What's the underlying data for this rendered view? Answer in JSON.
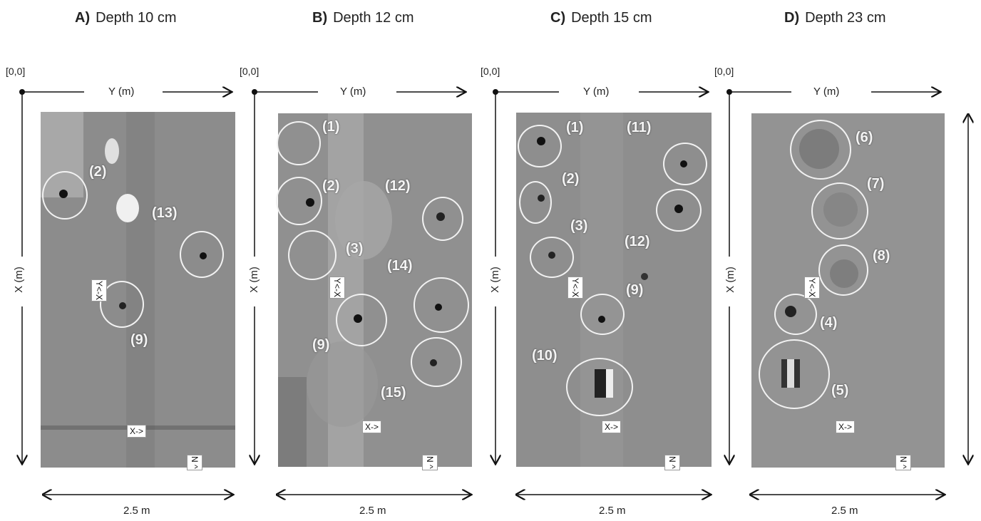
{
  "panels": [
    {
      "letter": "A)",
      "title": "Depth 10 cm",
      "origin": "[0,0]",
      "yaxis": "Y (m)",
      "xaxis": "X (m)",
      "scale": "2.5 m",
      "anomalies": [
        "(2)",
        "(13)",
        "(9)"
      ],
      "tag1": "Y<-X",
      "tag2": "X->",
      "tag3": "N ^"
    },
    {
      "letter": "B)",
      "title": "Depth 12 cm",
      "origin": "[0,0]",
      "yaxis": "Y (m)",
      "xaxis": "X (m)",
      "scale": "2.5 m",
      "anomalies": [
        "(1)",
        "(2)",
        "(12)",
        "(3)",
        "(14)",
        "(9)",
        "(15)"
      ],
      "tag1": "Y<-X",
      "tag2": "X->",
      "tag3": "N ^"
    },
    {
      "letter": "C)",
      "title": "Depth 15 cm",
      "origin": "[0,0]",
      "yaxis": "Y (m)",
      "xaxis": "X (m)",
      "scale": "2.5 m",
      "anomalies": [
        "(1)",
        "(11)",
        "(2)",
        "(3)",
        "(12)",
        "(9)",
        "(10)"
      ],
      "tag1": "Y<-X",
      "tag2": "X->",
      "tag3": "N ^"
    },
    {
      "letter": "D)",
      "title": "Depth 23 cm",
      "origin": "[0,0]",
      "yaxis": "Y (m)",
      "xaxis": "X (m)",
      "scale": "2.5 m",
      "anomalies": [
        "(6)",
        "(7)",
        "(8)",
        "(4)",
        "(5)"
      ],
      "tag1": "Y<-X",
      "tag2": "X->",
      "tag3": "N ^"
    }
  ],
  "colors": {
    "map_base": "#8a8a8a",
    "circle": "#f2f2f2",
    "label": "#f4f4f4"
  }
}
